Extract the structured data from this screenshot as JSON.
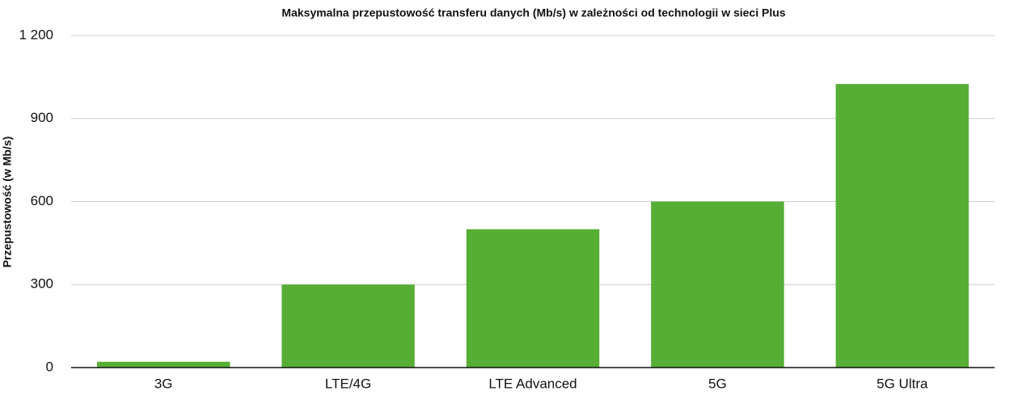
{
  "chart_data": {
    "type": "bar",
    "title": "Maksymalna przepustowość transferu danych (Mb/s) w zależności od technologii w sieci Plus",
    "y_label": "Przepustowość (w Mb/s)",
    "categories": [
      "3G",
      "LTE/4G",
      "LTE Advanced",
      "5G",
      "5G Ultra"
    ],
    "values": [
      21,
      300,
      500,
      600,
      1025
    ],
    "color": "#57ae35",
    "ylim": [
      0,
      1200
    ],
    "yticks": [
      0,
      300,
      600,
      900,
      {
        "value": 1200,
        "label": "1 200"
      }
    ],
    "grid": true
  }
}
